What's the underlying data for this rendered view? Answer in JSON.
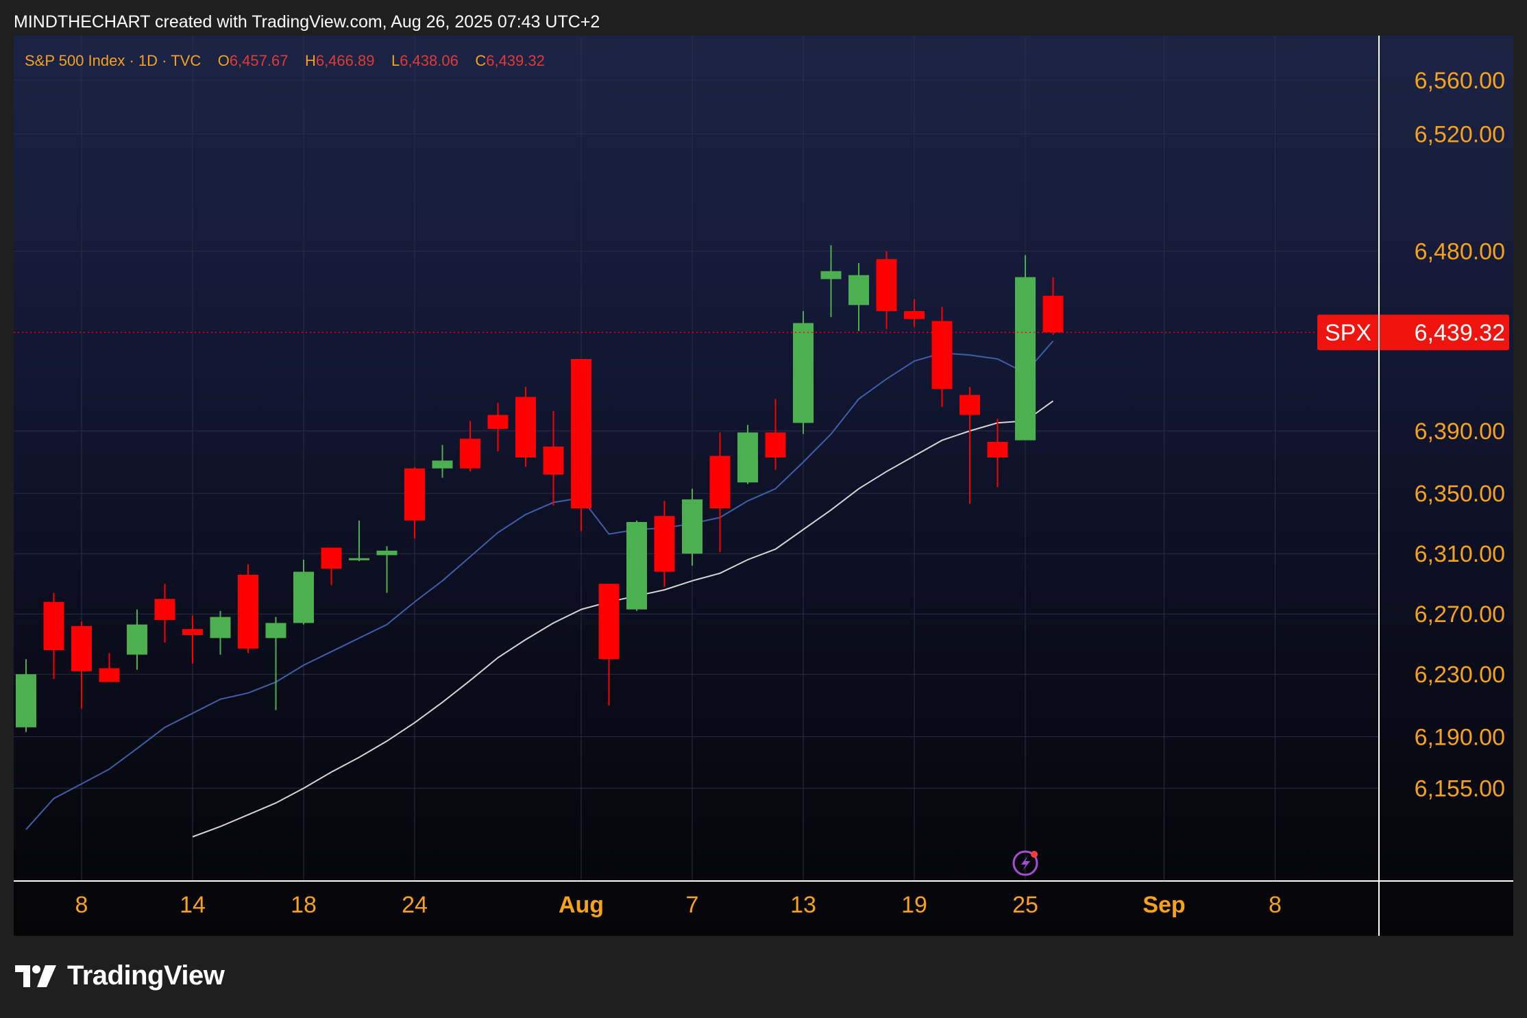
{
  "header": {
    "attribution": "MINDTHECHART created with TradingView.com, Aug 26, 2025 07:43 UTC+2"
  },
  "legend": {
    "symbol_label": "S&P 500 Index · 1D · TVC",
    "open_label": "O",
    "open_value": "6,457.67",
    "high_label": "H",
    "high_value": "6,466.89",
    "low_label": "L",
    "low_value": "6,438.06",
    "close_label": "C",
    "close_value": "6,439.32"
  },
  "brand": {
    "name": "TradingView"
  },
  "colors": {
    "up": "#4caf50",
    "down": "#ff0000",
    "ma_fast": "#3f5fa8",
    "ma_slow": "#d6d6d6",
    "axis_text": "#f7a21b",
    "price_tag_bg": "#f0140f",
    "grid": "#2a2f45"
  },
  "icons": {
    "alert": "lightning-icon"
  },
  "chart_data": {
    "type": "candlestick",
    "symbol": "SPX",
    "last_price": 6439.32,
    "last_price_label": "6,439.32",
    "price_ticks": [
      6560,
      6520,
      6480,
      6390,
      6350,
      6310,
      6270,
      6230,
      6190,
      6155
    ],
    "price_tick_labels": [
      "6,560.00",
      "6,520.00",
      "6,480.00",
      "6,390.00",
      "6,350.00",
      "6,310.00",
      "6,270.00",
      "6,230.00",
      "6,190.00",
      "6,155.00"
    ],
    "x_ticks": [
      {
        "label": "8",
        "date": "2025-07-08",
        "bold": false
      },
      {
        "label": "14",
        "date": "2025-07-14",
        "bold": false
      },
      {
        "label": "18",
        "date": "2025-07-18",
        "bold": false
      },
      {
        "label": "24",
        "date": "2025-07-24",
        "bold": false
      },
      {
        "label": "Aug",
        "date": "2025-08-01",
        "bold": true
      },
      {
        "label": "7",
        "date": "2025-08-07",
        "bold": false
      },
      {
        "label": "13",
        "date": "2025-08-13",
        "bold": false
      },
      {
        "label": "19",
        "date": "2025-08-19",
        "bold": false
      },
      {
        "label": "25",
        "date": "2025-08-25",
        "bold": false
      },
      {
        "label": "Sep",
        "date": "2025-09-01",
        "bold": true
      },
      {
        "label": "8",
        "date": "2025-09-08",
        "bold": false
      }
    ],
    "candles": [
      {
        "date": "2025-07-03",
        "open": 6196,
        "high": 6240,
        "low": 6193,
        "close": 6230
      },
      {
        "date": "2025-07-07",
        "open": 6278,
        "high": 6284,
        "low": 6227,
        "close": 6246
      },
      {
        "date": "2025-07-08",
        "open": 6262,
        "high": 6265,
        "low": 6208,
        "close": 6232
      },
      {
        "date": "2025-07-09",
        "open": 6234,
        "high": 6244,
        "low": 6226,
        "close": 6225
      },
      {
        "date": "2025-07-10",
        "open": 6243,
        "high": 6273,
        "low": 6233,
        "close": 6263
      },
      {
        "date": "2025-07-11",
        "open": 6280,
        "high": 6290,
        "low": 6251,
        "close": 6266
      },
      {
        "date": "2025-07-14",
        "open": 6260,
        "high": 6269,
        "low": 6237,
        "close": 6256
      },
      {
        "date": "2025-07-15",
        "open": 6254,
        "high": 6272,
        "low": 6243,
        "close": 6268
      },
      {
        "date": "2025-07-16",
        "open": 6296,
        "high": 6303,
        "low": 6244,
        "close": 6247
      },
      {
        "date": "2025-07-17",
        "open": 6254,
        "high": 6268,
        "low": 6207,
        "close": 6264
      },
      {
        "date": "2025-07-18",
        "open": 6264,
        "high": 6306,
        "low": 6263,
        "close": 6298
      },
      {
        "date": "2025-07-21",
        "open": 6314,
        "high": 6314,
        "low": 6289,
        "close": 6300
      },
      {
        "date": "2025-07-22",
        "open": 6306,
        "high": 6332,
        "low": 6305,
        "close": 6307
      },
      {
        "date": "2025-07-23",
        "open": 6309,
        "high": 6315,
        "low": 6284,
        "close": 6312
      },
      {
        "date": "2025-07-24",
        "open": 6366,
        "high": 6367,
        "low": 6320,
        "close": 6332
      },
      {
        "date": "2025-07-25",
        "open": 6366,
        "high": 6381,
        "low": 6360,
        "close": 6371
      },
      {
        "date": "2025-07-28",
        "open": 6385,
        "high": 6395,
        "low": 6364,
        "close": 6366
      },
      {
        "date": "2025-07-29",
        "open": 6398,
        "high": 6404,
        "low": 6377,
        "close": 6391
      },
      {
        "date": "2025-07-30",
        "open": 6407,
        "high": 6412,
        "low": 6367,
        "close": 6373
      },
      {
        "date": "2025-07-31",
        "open": 6380,
        "high": 6400,
        "low": 6342,
        "close": 6362
      },
      {
        "date": "2025-08-01",
        "open": 6426,
        "high": 6426,
        "low": 6325,
        "close": 6340
      },
      {
        "date": "2025-08-04",
        "open": 6290,
        "high": 6290,
        "low": 6210,
        "close": 6240
      },
      {
        "date": "2025-08-05",
        "open": 6273,
        "high": 6332,
        "low": 6272,
        "close": 6331
      },
      {
        "date": "2025-08-06",
        "open": 6335,
        "high": 6345,
        "low": 6288,
        "close": 6298
      },
      {
        "date": "2025-08-07",
        "open": 6310,
        "high": 6353,
        "low": 6302,
        "close": 6346
      },
      {
        "date": "2025-08-08",
        "open": 6374,
        "high": 6389,
        "low": 6311,
        "close": 6340
      },
      {
        "date": "2025-08-11",
        "open": 6357,
        "high": 6393,
        "low": 6356,
        "close": 6389
      },
      {
        "date": "2025-08-12",
        "open": 6389,
        "high": 6406,
        "low": 6365,
        "close": 6373
      },
      {
        "date": "2025-08-13",
        "open": 6394,
        "high": 6450,
        "low": 6388,
        "close": 6444
      },
      {
        "date": "2025-08-14",
        "open": 6466,
        "high": 6482,
        "low": 6447,
        "close": 6470
      },
      {
        "date": "2025-08-15",
        "open": 6453,
        "high": 6474,
        "low": 6440,
        "close": 6468
      },
      {
        "date": "2025-08-18",
        "open": 6476,
        "high": 6480,
        "low": 6441,
        "close": 6450
      },
      {
        "date": "2025-08-19",
        "open": 6450,
        "high": 6456,
        "low": 6442,
        "close": 6446
      },
      {
        "date": "2025-08-20",
        "open": 6445,
        "high": 6452,
        "low": 6402,
        "close": 6411
      },
      {
        "date": "2025-08-21",
        "open": 6408,
        "high": 6412,
        "low": 6343,
        "close": 6398
      },
      {
        "date": "2025-08-22",
        "open": 6383,
        "high": 6396,
        "low": 6354,
        "close": 6373
      },
      {
        "date": "2025-08-25",
        "open": 6384,
        "high": 6478,
        "low": 6384,
        "close": 6467
      },
      {
        "date": "2025-08-26",
        "open": 6457.67,
        "high": 6466.89,
        "low": 6438.06,
        "close": 6439.32
      }
    ],
    "moving_averages": [
      {
        "color": "#3f5fa8",
        "points": [
          [
            "2025-07-03",
            6127
          ],
          [
            "2025-07-07",
            6148
          ],
          [
            "2025-07-08",
            6158
          ],
          [
            "2025-07-09",
            6168
          ],
          [
            "2025-07-10",
            6182
          ],
          [
            "2025-07-11",
            6196
          ],
          [
            "2025-07-14",
            6205
          ],
          [
            "2025-07-15",
            6214
          ],
          [
            "2025-07-16",
            6218
          ],
          [
            "2025-07-17",
            6225
          ],
          [
            "2025-07-18",
            6236
          ],
          [
            "2025-07-21",
            6245
          ],
          [
            "2025-07-22",
            6254
          ],
          [
            "2025-07-23",
            6263
          ],
          [
            "2025-07-24",
            6278
          ],
          [
            "2025-07-25",
            6292
          ],
          [
            "2025-07-28",
            6308
          ],
          [
            "2025-07-29",
            6324
          ],
          [
            "2025-07-30",
            6336
          ],
          [
            "2025-07-31",
            6344
          ],
          [
            "2025-08-01",
            6347
          ],
          [
            "2025-08-04",
            6323
          ],
          [
            "2025-08-05",
            6326
          ],
          [
            "2025-08-06",
            6327
          ],
          [
            "2025-08-07",
            6330
          ],
          [
            "2025-08-08",
            6334
          ],
          [
            "2025-08-11",
            6345
          ],
          [
            "2025-08-12",
            6353
          ],
          [
            "2025-08-13",
            6370
          ],
          [
            "2025-08-14",
            6388
          ],
          [
            "2025-08-15",
            6406
          ],
          [
            "2025-08-18",
            6416
          ],
          [
            "2025-08-19",
            6425
          ],
          [
            "2025-08-20",
            6429
          ],
          [
            "2025-08-21",
            6428
          ],
          [
            "2025-08-22",
            6426
          ],
          [
            "2025-08-25",
            6419
          ],
          [
            "2025-08-26",
            6435
          ]
        ]
      },
      {
        "color": "#d6d6d6",
        "points": [
          [
            "2025-07-14",
            6122
          ],
          [
            "2025-07-15",
            6129
          ],
          [
            "2025-07-16",
            6137
          ],
          [
            "2025-07-17",
            6145
          ],
          [
            "2025-07-18",
            6155
          ],
          [
            "2025-07-21",
            6166
          ],
          [
            "2025-07-22",
            6176
          ],
          [
            "2025-07-23",
            6187
          ],
          [
            "2025-07-24",
            6199
          ],
          [
            "2025-07-25",
            6212
          ],
          [
            "2025-07-28",
            6226
          ],
          [
            "2025-07-29",
            6241
          ],
          [
            "2025-07-30",
            6253
          ],
          [
            "2025-07-31",
            6264
          ],
          [
            "2025-08-01",
            6273
          ],
          [
            "2025-08-04",
            6278
          ],
          [
            "2025-08-05",
            6282
          ],
          [
            "2025-08-06",
            6286
          ],
          [
            "2025-08-07",
            6292
          ],
          [
            "2025-08-08",
            6297
          ],
          [
            "2025-08-11",
            6306
          ],
          [
            "2025-08-12",
            6313
          ],
          [
            "2025-08-13",
            6326
          ],
          [
            "2025-08-14",
            6339
          ],
          [
            "2025-08-15",
            6353
          ],
          [
            "2025-08-18",
            6364
          ],
          [
            "2025-08-19",
            6374
          ],
          [
            "2025-08-20",
            6384
          ],
          [
            "2025-08-21",
            6390
          ],
          [
            "2025-08-22",
            6394
          ],
          [
            "2025-08-25",
            6395
          ],
          [
            "2025-08-26",
            6405
          ]
        ]
      }
    ]
  }
}
